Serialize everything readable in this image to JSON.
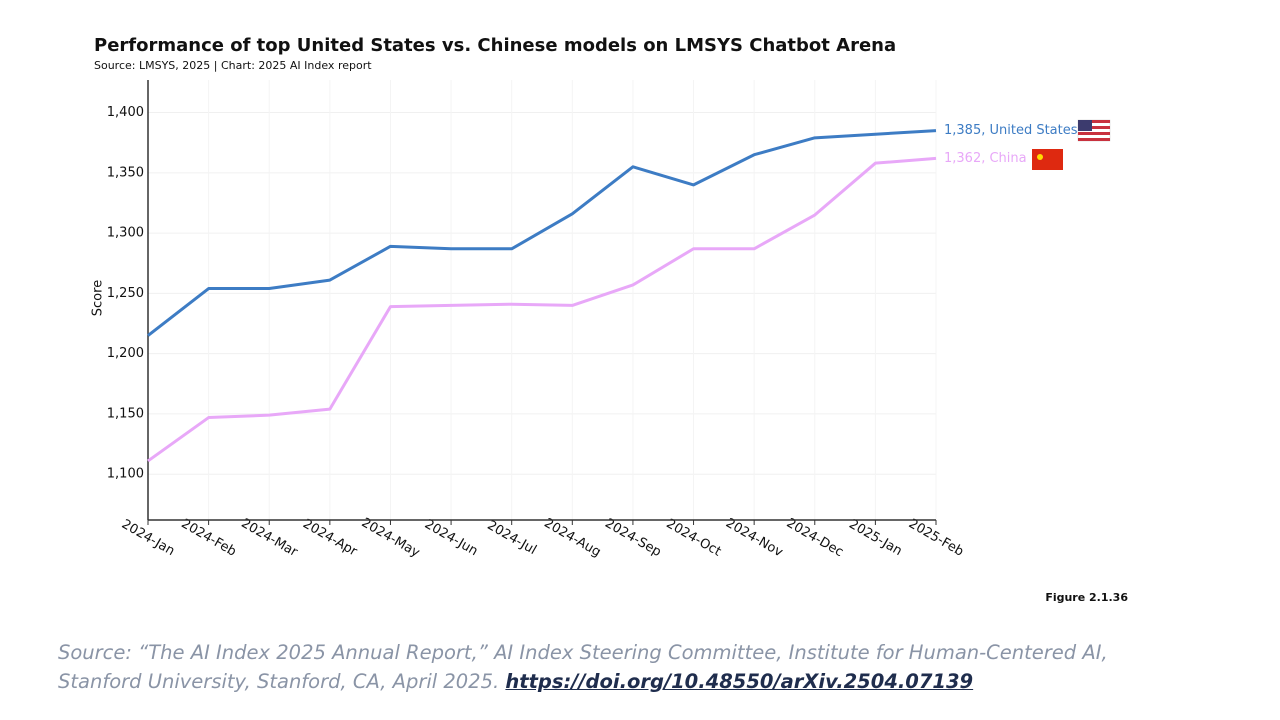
{
  "chart_data": {
    "type": "line",
    "title": "Performance of top United States vs. Chinese models on LMSYS Chatbot Arena",
    "subtitle": "Source: LMSYS, 2025 | Chart: 2025 AI Index report",
    "y_label": "Score",
    "categories": [
      "2024-Jan",
      "2024-Feb",
      "2024-Mar",
      "2024-Apr",
      "2024-May",
      "2024-Jun",
      "2024-Jul",
      "2024-Aug",
      "2024-Sep",
      "2024-Oct",
      "2024-Nov",
      "2024-Dec",
      "2025-Jan",
      "2025-Feb"
    ],
    "series": [
      {
        "name": "United States",
        "color": "#3d7cc4",
        "end_label": "1,385, United States",
        "values": [
          1215,
          1254,
          1254,
          1261,
          1289,
          1287,
          1287,
          1316,
          1355,
          1340,
          1365,
          1379,
          1382,
          1385
        ]
      },
      {
        "name": "China",
        "color": "#e8a8f8",
        "end_label": "1,362, China",
        "values": [
          1111,
          1147,
          1149,
          1154,
          1239,
          1240,
          1241,
          1240,
          1257,
          1287,
          1287,
          1315,
          1358,
          1362
        ]
      }
    ],
    "ylim": [
      1062,
      1427
    ],
    "yticks": [
      {
        "value": 1100,
        "label": "1,100"
      },
      {
        "value": 1150,
        "label": "1,150"
      },
      {
        "value": 1200,
        "label": "1,200"
      },
      {
        "value": 1250,
        "label": "1,250"
      },
      {
        "value": 1300,
        "label": "1,300"
      },
      {
        "value": 1350,
        "label": "1,350"
      },
      {
        "value": 1400,
        "label": "1,400"
      }
    ],
    "grid": true,
    "figure_label": "Figure 2.1.36"
  },
  "caption": {
    "text": "Source: “The AI Index 2025 Annual Report,” AI Index Steering Committee, Institute for Human-Centered AI, Stanford University, Stanford, CA, April 2025.",
    "link": "https://doi.org/10.48550/arXiv.2504.07139"
  }
}
